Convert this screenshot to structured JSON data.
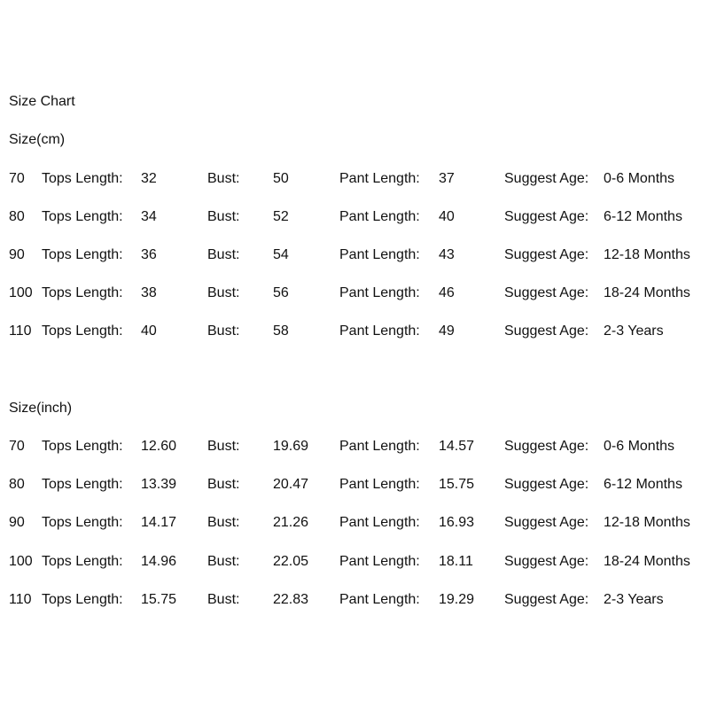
{
  "title": "Size Chart",
  "labels": {
    "tops": "Tops Length:",
    "bust": "Bust:",
    "pant": "Pant Length:",
    "age": "Suggest Age:"
  },
  "sections": [
    {
      "heading": "Size(cm)",
      "rows": [
        {
          "size": "70",
          "tops": "32",
          "bust": "50",
          "pant": "37",
          "age": "0-6 Months"
        },
        {
          "size": "80",
          "tops": "34",
          "bust": "52",
          "pant": "40",
          "age": "6-12 Months"
        },
        {
          "size": "90",
          "tops": "36",
          "bust": "54",
          "pant": "43",
          "age": "12-18 Months"
        },
        {
          "size": "100",
          "tops": "38",
          "bust": "56",
          "pant": "46",
          "age": "18-24 Months"
        },
        {
          "size": "110",
          "tops": "40",
          "bust": "58",
          "pant": "49",
          "age": "2-3 Years"
        }
      ]
    },
    {
      "heading": "Size(inch)",
      "rows": [
        {
          "size": "70",
          "tops": "12.60",
          "bust": "19.69",
          "pant": "14.57",
          "age": "0-6 Months"
        },
        {
          "size": "80",
          "tops": "13.39",
          "bust": "20.47",
          "pant": "15.75",
          "age": "6-12 Months"
        },
        {
          "size": "90",
          "tops": "14.17",
          "bust": "21.26",
          "pant": "16.93",
          "age": "12-18 Months"
        },
        {
          "size": "100",
          "tops": "14.96",
          "bust": "22.05",
          "pant": "18.11",
          "age": "18-24 Months"
        },
        {
          "size": "110",
          "tops": "15.75",
          "bust": "22.83",
          "pant": "19.29",
          "age": "2-3 Years"
        }
      ]
    }
  ]
}
